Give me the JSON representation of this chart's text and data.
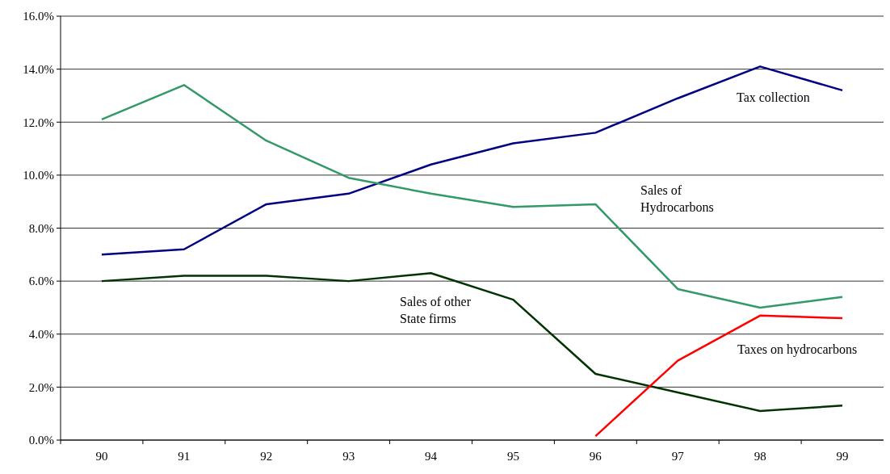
{
  "chart_data": {
    "type": "line",
    "categories": [
      "90",
      "91",
      "92",
      "93",
      "94",
      "95",
      "96",
      "97",
      "98",
      "99"
    ],
    "series": [
      {
        "name": "Tax collection",
        "color": "#000080",
        "values": [
          7.0,
          7.2,
          8.9,
          9.3,
          10.4,
          11.2,
          11.6,
          12.9,
          14.1,
          13.2
        ]
      },
      {
        "name": "Sales of Hydrocarbons",
        "color": "#339966",
        "values": [
          12.1,
          13.4,
          11.3,
          9.9,
          9.3,
          8.8,
          8.9,
          5.7,
          5.0,
          5.4
        ]
      },
      {
        "name": "Sales of other State firms",
        "color": "#003300",
        "values": [
          6.0,
          6.2,
          6.2,
          6.0,
          6.3,
          5.3,
          2.5,
          1.8,
          1.1,
          1.3
        ]
      },
      {
        "name": "Taxes on hydrocarbons",
        "color": "#ff0000",
        "values": [
          null,
          null,
          null,
          null,
          null,
          null,
          0.15,
          3.0,
          4.7,
          4.6
        ]
      }
    ],
    "ylim": [
      0,
      16
    ],
    "yticks": [
      {
        "value": 0,
        "label": "0.0%"
      },
      {
        "value": 2,
        "label": "2.0%"
      },
      {
        "value": 4,
        "label": "4.0%"
      },
      {
        "value": 6,
        "label": "6.0%"
      },
      {
        "value": 8,
        "label": "8.0%"
      },
      {
        "value": 10,
        "label": "10.0%"
      },
      {
        "value": 12,
        "label": "12.0%"
      },
      {
        "value": 14,
        "label": "14.0%"
      },
      {
        "value": 16,
        "label": "16.0%"
      }
    ],
    "grid": "y",
    "marker": "none",
    "line_style": "solid"
  }
}
